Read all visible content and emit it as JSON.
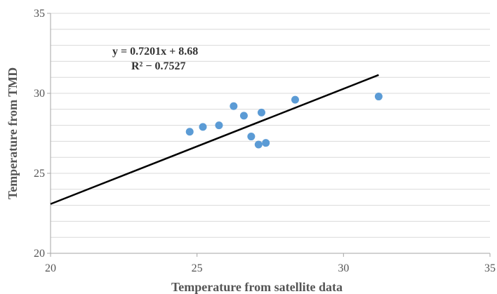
{
  "chart_data": {
    "type": "scatter",
    "title": "",
    "xlabel": "Temperature from satellite data",
    "ylabel": "Temperature from TMD",
    "xlim": [
      20,
      35
    ],
    "ylim": [
      20,
      35
    ],
    "x_ticks": [
      20,
      25,
      30,
      35
    ],
    "y_ticks": [
      20,
      25,
      30,
      35
    ],
    "grid": true,
    "points": [
      {
        "x": 24.75,
        "y": 27.6
      },
      {
        "x": 25.2,
        "y": 27.9
      },
      {
        "x": 25.75,
        "y": 28.0
      },
      {
        "x": 26.25,
        "y": 29.2
      },
      {
        "x": 26.6,
        "y": 28.6
      },
      {
        "x": 26.85,
        "y": 27.3
      },
      {
        "x": 27.1,
        "y": 26.8
      },
      {
        "x": 27.2,
        "y": 28.8
      },
      {
        "x": 27.35,
        "y": 26.9
      },
      {
        "x": 28.35,
        "y": 29.6
      },
      {
        "x": 31.2,
        "y": 29.8
      }
    ],
    "trendline": {
      "slope": 0.7201,
      "intercept": 8.68,
      "x_start": 20,
      "x_end": 31.2
    },
    "equation_label": "y = 0.7201x + 8.68",
    "r2_label": "R² − 0.7527",
    "colors": {
      "points": "#5b9bd5",
      "trendline": "#000000",
      "grid": "#d9d9d9",
      "axis": "#a6a6a6"
    }
  }
}
